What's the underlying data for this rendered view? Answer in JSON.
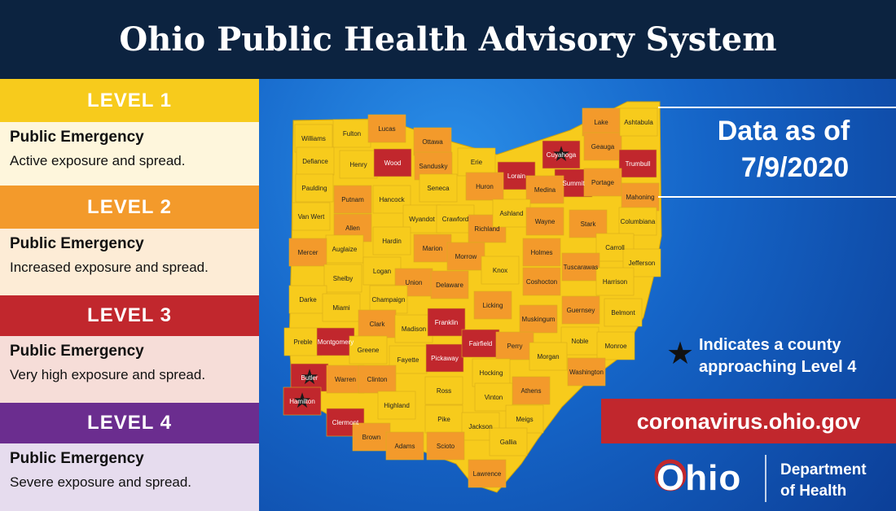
{
  "header": {
    "title": "Ohio Public Health Advisory System"
  },
  "levels": [
    {
      "label": "LEVEL 1",
      "heading": "Public Emergency",
      "description": "Active exposure and spread.",
      "color": "#f7cb1c",
      "body_color": "#fef6dc"
    },
    {
      "label": "LEVEL 2",
      "heading": "Public Emergency",
      "description": "Increased exposure and spread.",
      "color": "#f39a2b",
      "body_color": "#fdecd6"
    },
    {
      "label": "LEVEL 3",
      "heading": "Public Emergency",
      "description": "Very high exposure and spread.",
      "color": "#c1272d",
      "body_color": "#f6ddd8"
    },
    {
      "label": "LEVEL 4",
      "heading": "Public Emergency",
      "description": "Severe exposure and spread.",
      "color": "#6b2d8f",
      "body_color": "#e6dcee"
    }
  ],
  "data_date": [
    "Data as of",
    "7/9/2020"
  ],
  "star_note": [
    "Indicates a county",
    "approaching Level 4"
  ],
  "website": "coronavirus.ohio.gov",
  "logo": {
    "wordmark": "Ohio",
    "department": [
      "Department",
      "of Health"
    ]
  },
  "counties": [
    {
      "name": "Williams",
      "level": 1
    },
    {
      "name": "Fulton",
      "level": 1
    },
    {
      "name": "Lucas",
      "level": 2
    },
    {
      "name": "Ottawa",
      "level": 2
    },
    {
      "name": "Defiance",
      "level": 1
    },
    {
      "name": "Henry",
      "level": 1
    },
    {
      "name": "Wood",
      "level": 3
    },
    {
      "name": "Sandusky",
      "level": 2
    },
    {
      "name": "Erie",
      "level": 1
    },
    {
      "name": "Lorain",
      "level": 3
    },
    {
      "name": "Cuyahoga",
      "level": 3,
      "star": true
    },
    {
      "name": "Lake",
      "level": 2
    },
    {
      "name": "Geauga",
      "level": 2
    },
    {
      "name": "Ashtabula",
      "level": 1
    },
    {
      "name": "Trumbull",
      "level": 3
    },
    {
      "name": "Summit",
      "level": 3
    },
    {
      "name": "Portage",
      "level": 2
    },
    {
      "name": "Paulding",
      "level": 1
    },
    {
      "name": "Putnam",
      "level": 2
    },
    {
      "name": "Hancock",
      "level": 1
    },
    {
      "name": "Seneca",
      "level": 1
    },
    {
      "name": "Huron",
      "level": 2
    },
    {
      "name": "Medina",
      "level": 2
    },
    {
      "name": "Mahoning",
      "level": 2
    },
    {
      "name": "Van Wert",
      "level": 1
    },
    {
      "name": "Allen",
      "level": 2
    },
    {
      "name": "Wyandot",
      "level": 1
    },
    {
      "name": "Crawford",
      "level": 1
    },
    {
      "name": "Richland",
      "level": 2
    },
    {
      "name": "Ashland",
      "level": 1
    },
    {
      "name": "Wayne",
      "level": 2
    },
    {
      "name": "Stark",
      "level": 2
    },
    {
      "name": "Columbiana",
      "level": 1
    },
    {
      "name": "Auglaize",
      "level": 1
    },
    {
      "name": "Hardin",
      "level": 1
    },
    {
      "name": "Marion",
      "level": 2
    },
    {
      "name": "Morrow",
      "level": 2
    },
    {
      "name": "Holmes",
      "level": 2
    },
    {
      "name": "Carroll",
      "level": 1
    },
    {
      "name": "Mercer",
      "level": 2
    },
    {
      "name": "Jefferson",
      "level": 1
    },
    {
      "name": "Tuscarawas",
      "level": 2
    },
    {
      "name": "Knox",
      "level": 1
    },
    {
      "name": "Logan",
      "level": 1
    },
    {
      "name": "Shelby",
      "level": 1
    },
    {
      "name": "Union",
      "level": 2
    },
    {
      "name": "Delaware",
      "level": 2
    },
    {
      "name": "Coshocton",
      "level": 2
    },
    {
      "name": "Harrison",
      "level": 1
    },
    {
      "name": "Darke",
      "level": 1
    },
    {
      "name": "Miami",
      "level": 1
    },
    {
      "name": "Champaign",
      "level": 1
    },
    {
      "name": "Licking",
      "level": 2
    },
    {
      "name": "Muskingum",
      "level": 2
    },
    {
      "name": "Guernsey",
      "level": 2
    },
    {
      "name": "Belmont",
      "level": 1
    },
    {
      "name": "Clark",
      "level": 2
    },
    {
      "name": "Madison",
      "level": 1
    },
    {
      "name": "Franklin",
      "level": 3
    },
    {
      "name": "Preble",
      "level": 1
    },
    {
      "name": "Montgomery",
      "level": 3
    },
    {
      "name": "Greene",
      "level": 1
    },
    {
      "name": "Fayette",
      "level": 1
    },
    {
      "name": "Pickaway",
      "level": 3
    },
    {
      "name": "Fairfield",
      "level": 3
    },
    {
      "name": "Perry",
      "level": 2
    },
    {
      "name": "Noble",
      "level": 1
    },
    {
      "name": "Monroe",
      "level": 1
    },
    {
      "name": "Morgan",
      "level": 1
    },
    {
      "name": "Washington",
      "level": 2
    },
    {
      "name": "Butler",
      "level": 3,
      "star": true
    },
    {
      "name": "Warren",
      "level": 2
    },
    {
      "name": "Clinton",
      "level": 2
    },
    {
      "name": "Hocking",
      "level": 1
    },
    {
      "name": "Athens",
      "level": 2
    },
    {
      "name": "Ross",
      "level": 1
    },
    {
      "name": "Vinton",
      "level": 1
    },
    {
      "name": "Highland",
      "level": 1
    },
    {
      "name": "Hamilton",
      "level": 3,
      "star": true
    },
    {
      "name": "Clermont",
      "level": 3
    },
    {
      "name": "Meigs",
      "level": 1
    },
    {
      "name": "Pike",
      "level": 1
    },
    {
      "name": "Jackson",
      "level": 1
    },
    {
      "name": "Brown",
      "level": 2
    },
    {
      "name": "Adams",
      "level": 2
    },
    {
      "name": "Scioto",
      "level": 2
    },
    {
      "name": "Gallia",
      "level": 1
    },
    {
      "name": "Lawrence",
      "level": 2
    }
  ]
}
